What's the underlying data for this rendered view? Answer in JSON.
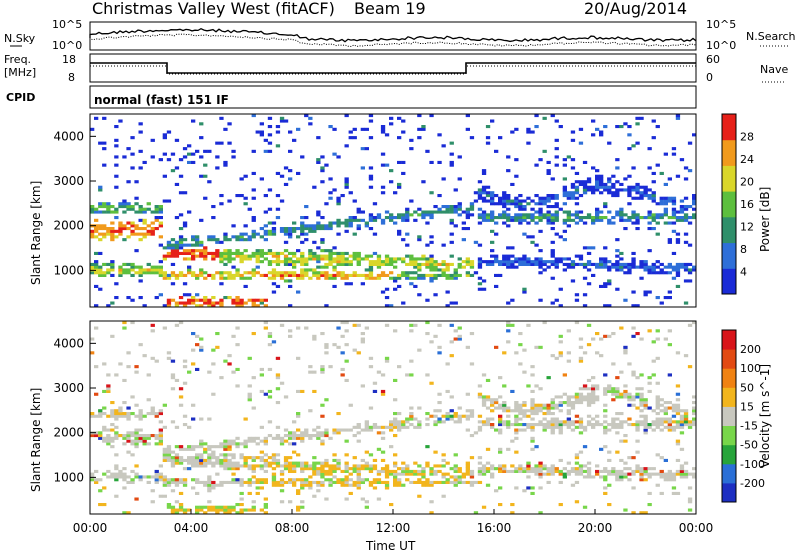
{
  "header": {
    "title": "Christmas Valley West (fitACF)",
    "beam": "Beam 19",
    "date": "20/Aug/2014"
  },
  "nsky_panel": {
    "left_label": "N.Sky",
    "right_label": "N.Search",
    "left_ticks": [
      "10^5",
      "10^0"
    ],
    "right_ticks": [
      "10^5",
      "10^0"
    ]
  },
  "freq_panel": {
    "left_label_1": "Freq.",
    "left_label_2": "[MHz]",
    "right_label": "Nave",
    "left_ticks": [
      "18",
      "8"
    ],
    "right_ticks": [
      "60",
      "0"
    ]
  },
  "cpid_panel": {
    "label": "CPID",
    "mode": "normal (fast) 151 IF"
  },
  "x_axis": {
    "label": "Time UT",
    "ticks": [
      "00:00",
      "04:00",
      "08:00",
      "12:00",
      "16:00",
      "20:00",
      "00:00"
    ]
  },
  "chart_data": [
    {
      "type": "heatmap",
      "panel": "power",
      "xlabel": "Time UT",
      "ylabel": "Slant Range [km]",
      "yticks": [
        "1000",
        "2000",
        "3000",
        "4000"
      ],
      "ylim": [
        180,
        4500
      ],
      "xlim": [
        "00:00",
        "24:00"
      ],
      "colorbar_label": "Power [dB]",
      "colorbar_ticks": [
        "4",
        "8",
        "12",
        "16",
        "20",
        "24",
        "28"
      ],
      "colors": [
        "#1a2bd6",
        "#2e6fd8",
        "#2f8f6a",
        "#5dbf3e",
        "#d9d62a",
        "#f19a1c",
        "#e62019"
      ]
    },
    {
      "type": "heatmap",
      "panel": "velocity",
      "xlabel": "Time UT",
      "ylabel": "Slant Range [km]",
      "yticks": [
        "1000",
        "2000",
        "3000",
        "4000"
      ],
      "ylim": [
        180,
        4500
      ],
      "xlim": [
        "00:00",
        "24:00"
      ],
      "colorbar_label": "Velocity [m s^-1]",
      "colorbar_ticks": [
        "200",
        "100",
        "50",
        "15",
        "-15",
        "-50",
        "-100",
        "-200"
      ],
      "colors": [
        "#1d2fc2",
        "#2a6fd6",
        "#27a43a",
        "#78d64a",
        "#c8c8bf",
        "#f2b51d",
        "#f08212",
        "#e24a12",
        "#d8141a"
      ]
    }
  ]
}
